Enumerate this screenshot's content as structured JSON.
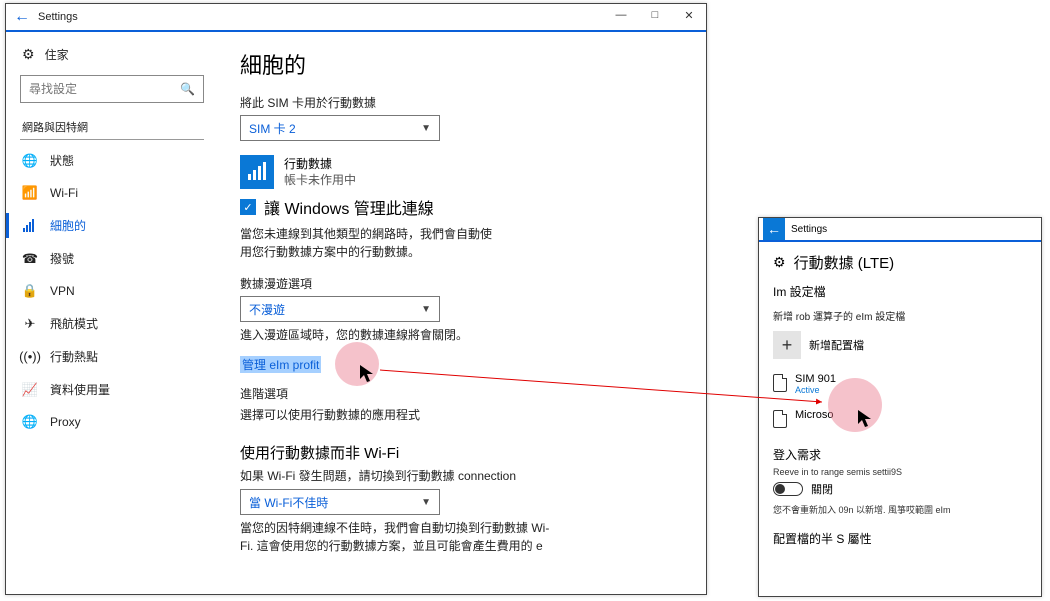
{
  "main": {
    "title": "Settings",
    "home_label": "住家",
    "search_placeholder": "尋找設定",
    "section_label": "網路與因特網",
    "nav": [
      {
        "icon": "status",
        "label": "狀態"
      },
      {
        "icon": "wifi",
        "label": "Wi-Fi"
      },
      {
        "icon": "cellular",
        "label": "細胞的",
        "active": true
      },
      {
        "icon": "dialup",
        "label": "撥號"
      },
      {
        "icon": "vpn",
        "label": "VPN"
      },
      {
        "icon": "airplane",
        "label": "飛航模式"
      },
      {
        "icon": "hotspot",
        "label": "行動熱點"
      },
      {
        "icon": "datausage",
        "label": "資料使用量"
      },
      {
        "icon": "proxy",
        "label": "Proxy"
      }
    ],
    "page_heading": "細胞的",
    "sim_label": "將此 SIM 卡用於行動數據",
    "sim_select": "SIM 卡 2",
    "conn_title": "行動數據",
    "conn_subtitle": "帳卡未作用中",
    "manage_chk": "讓 Windows 管理此連線",
    "auto_desc": "當您未連線到其他類型的網路時，我們會自動使用您行動數據方案中的行動數據。",
    "roam_heading": "數據漫遊選項",
    "roam_select": "不漫遊",
    "roam_desc": "進入漫遊區域時，您的數據連線將會關閉。",
    "manage_profiles_link": "管理 eIm profit",
    "advanced_label": "進階選項",
    "choose_apps": "選擇可以使用行動數據的應用程式",
    "prefer_heading": "使用行動數據而非 Wi-Fi",
    "prefer_desc": "如果 Wi-Fi 發生問題，請切換到行動數據 connection",
    "prefer_select": "當 Wi-Fi不佳時",
    "prefer_desc2": "當您的因特網連線不佳時，我們會自動切換到行動數據 Wi-Fi. 這會使用您的行動數據方案，並且可能會產生費用的 e"
  },
  "sec": {
    "title": "Settings",
    "page_heading": "行動數據 (LTE)",
    "profiles_heading": "Im 設定檔",
    "profiles_desc": "新增 rob 運算子的 eIm 設定檔",
    "add_label": "新增配置檔",
    "sims": [
      {
        "name": "SIM 901",
        "status": "Active"
      },
      {
        "name": "Microso"
      }
    ],
    "signin_heading": "登入需求",
    "signin_tiny": "Reeve in to range semis settii9S",
    "toggle_label": "關閉",
    "signin_desc": "您不會重新加入 09n 以新增. 風箏哎範圍 eIm",
    "props_heading": "配置檔的半 S 屬性"
  },
  "colors": {
    "accent": "#0a78d6",
    "link": "#0a5fd8",
    "highlight": "#a6d0ff",
    "spot": "rgba(232,120,140,.45)"
  }
}
